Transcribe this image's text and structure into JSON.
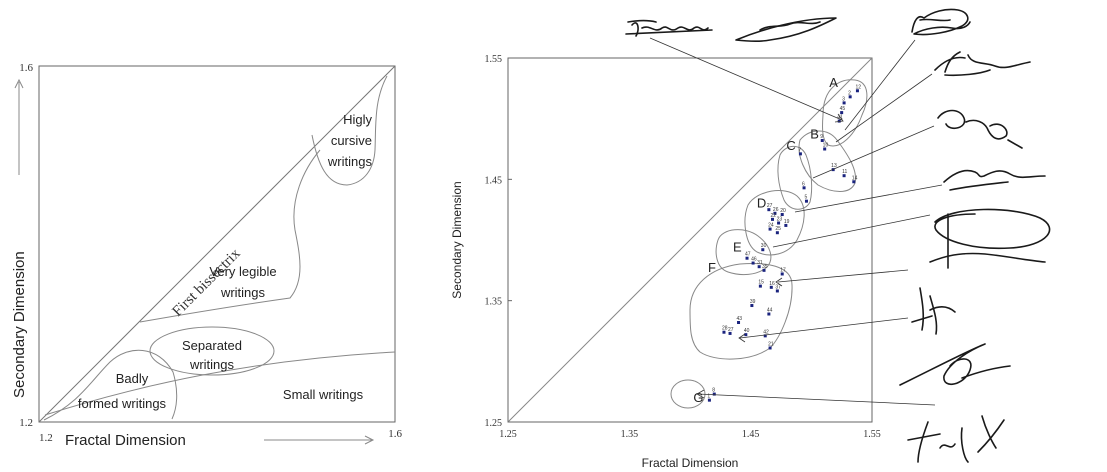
{
  "left_diagram": {
    "x_axis_label": "Fractal Dimension",
    "y_axis_label": "Secondary Dimension",
    "x_min": "1.2",
    "x_max": "1.6",
    "y_min": "1.2",
    "y_max": "1.6",
    "bisectrix_label": "First bissectrix",
    "regions": {
      "cursive_1": "Higly",
      "cursive_2": "cursive",
      "cursive_3": "writings",
      "legible_1": "Very legible",
      "legible_2": "writings",
      "separated_1": "Separated",
      "separated_2": "writings",
      "badly_1": "Badly",
      "badly_2": "formed writings",
      "small": "Small writings"
    }
  },
  "chart_data": {
    "type": "scatter",
    "xlabel": "Fractal Dimension",
    "ylabel": "Secondary Dimension",
    "xlim": [
      1.25,
      1.55
    ],
    "ylim": [
      1.25,
      1.55
    ],
    "x_ticks": [
      "1.25",
      "1.35",
      "1.45",
      "1.55"
    ],
    "y_ticks": [
      "1.25",
      "1.35",
      "1.45",
      "1.55"
    ],
    "groups": [
      {
        "name": "A",
        "points": [
          {
            "id": "12",
            "x": 1.538,
            "y": 1.523
          },
          {
            "id": "2",
            "x": 1.532,
            "y": 1.518
          },
          {
            "id": "3",
            "x": 1.527,
            "y": 1.513
          },
          {
            "id": "45",
            "x": 1.525,
            "y": 1.505
          },
          {
            "id": "41",
            "x": 1.523,
            "y": 1.498
          }
        ]
      },
      {
        "name": "B",
        "points": [
          {
            "id": "9",
            "x": 1.509,
            "y": 1.482
          },
          {
            "id": "10",
            "x": 1.511,
            "y": 1.475
          },
          {
            "id": "13",
            "x": 1.518,
            "y": 1.458
          },
          {
            "id": "11",
            "x": 1.527,
            "y": 1.453
          },
          {
            "id": "14",
            "x": 1.535,
            "y": 1.448
          }
        ]
      },
      {
        "name": "C",
        "points": [
          {
            "id": "7",
            "x": 1.491,
            "y": 1.471
          },
          {
            "id": "6",
            "x": 1.494,
            "y": 1.443
          },
          {
            "id": "5",
            "x": 1.496,
            "y": 1.432
          }
        ]
      },
      {
        "name": "D",
        "points": [
          {
            "id": "27",
            "x": 1.465,
            "y": 1.425
          },
          {
            "id": "26",
            "x": 1.47,
            "y": 1.422
          },
          {
            "id": "20",
            "x": 1.476,
            "y": 1.421
          },
          {
            "id": "22",
            "x": 1.468,
            "y": 1.417
          },
          {
            "id": "23",
            "x": 1.473,
            "y": 1.414
          },
          {
            "id": "19",
            "x": 1.479,
            "y": 1.412
          },
          {
            "id": "24",
            "x": 1.466,
            "y": 1.409
          },
          {
            "id": "25",
            "x": 1.472,
            "y": 1.406
          }
        ]
      },
      {
        "name": "E",
        "points": [
          {
            "id": "30",
            "x": 1.46,
            "y": 1.392
          },
          {
            "id": "47",
            "x": 1.447,
            "y": 1.385
          },
          {
            "id": "46",
            "x": 1.452,
            "y": 1.381
          },
          {
            "id": "31",
            "x": 1.457,
            "y": 1.378
          },
          {
            "id": "35",
            "x": 1.461,
            "y": 1.375
          }
        ]
      },
      {
        "name": "F",
        "points": [
          {
            "id": "17",
            "x": 1.476,
            "y": 1.372
          },
          {
            "id": "15",
            "x": 1.458,
            "y": 1.362
          },
          {
            "id": "16",
            "x": 1.467,
            "y": 1.361
          },
          {
            "id": "37",
            "x": 1.472,
            "y": 1.358
          },
          {
            "id": "39",
            "x": 1.451,
            "y": 1.346
          },
          {
            "id": "44",
            "x": 1.465,
            "y": 1.339
          },
          {
            "id": "43",
            "x": 1.44,
            "y": 1.332
          },
          {
            "id": "28",
            "x": 1.428,
            "y": 1.324
          },
          {
            "id": "27",
            "x": 1.433,
            "y": 1.323
          },
          {
            "id": "40",
            "x": 1.446,
            "y": 1.322
          },
          {
            "id": "42",
            "x": 1.462,
            "y": 1.321
          },
          {
            "id": "21",
            "x": 1.466,
            "y": 1.311
          }
        ]
      },
      {
        "name": "G",
        "points": [
          {
            "id": "8",
            "x": 1.42,
            "y": 1.273
          },
          {
            "id": "1",
            "x": 1.416,
            "y": 1.268
          }
        ]
      }
    ]
  },
  "signatures": [
    {
      "name": "signature-1-icon"
    },
    {
      "name": "signature-2-icon"
    },
    {
      "name": "signature-3-icon"
    },
    {
      "name": "signature-4-icon"
    },
    {
      "name": "signature-5-icon"
    },
    {
      "name": "signature-6-icon"
    },
    {
      "name": "signature-7-icon"
    },
    {
      "name": "signature-8-icon"
    },
    {
      "name": "signature-9-icon"
    },
    {
      "name": "signature-10-icon"
    }
  ]
}
